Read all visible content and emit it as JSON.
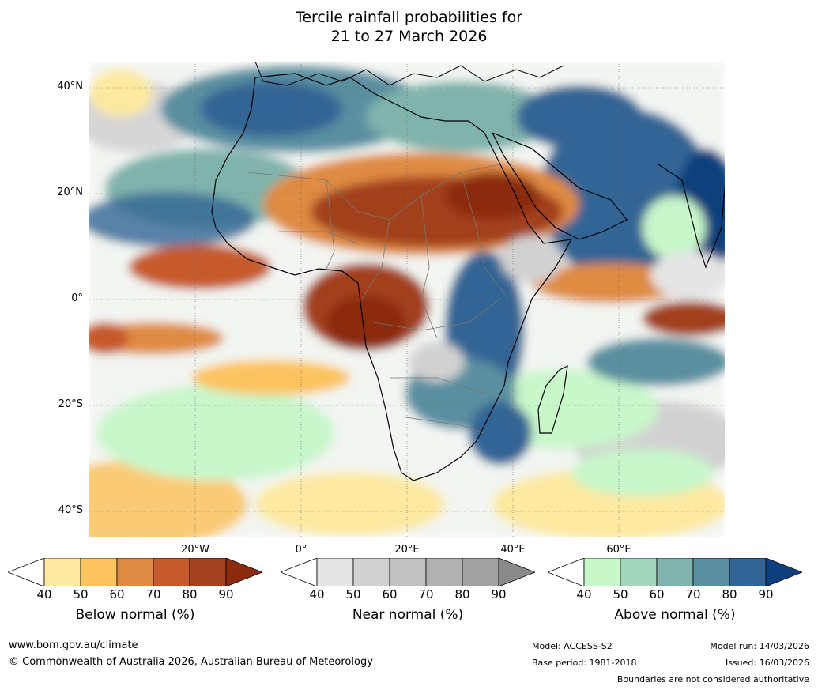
{
  "title": {
    "line1": "Tercile rainfall probabilities for",
    "line2": "21 to 27 March 2026"
  },
  "map": {
    "type": "tercile rainfall probability map",
    "region": "Africa",
    "latitude_labels": [
      "40°N",
      "20°N",
      "0°",
      "20°S",
      "40°S"
    ],
    "longitude_labels": [
      "20°W",
      "0°",
      "20°E",
      "40°E",
      "60°E"
    ]
  },
  "legends": {
    "below": {
      "title": "Below normal (%)",
      "ticks": [
        "40",
        "50",
        "60",
        "70",
        "80",
        "90"
      ],
      "colors": [
        "#ffffff",
        "#fde9a0",
        "#fcc35f",
        "#df8b43",
        "#c65a2c",
        "#a3401e",
        "#8c2a10"
      ]
    },
    "near": {
      "title": "Near normal (%)",
      "ticks": [
        "40",
        "50",
        "60",
        "70",
        "80",
        "90"
      ],
      "colors": [
        "#ffffff",
        "#e5e5e5",
        "#d1d1d1",
        "#c1c1c1",
        "#b1b1b1",
        "#a1a1a1",
        "#8a8a8a"
      ]
    },
    "above": {
      "title": "Above normal (%)",
      "ticks": [
        "40",
        "50",
        "60",
        "70",
        "80",
        "90"
      ],
      "colors": [
        "#ffffff",
        "#c8f7ca",
        "#a3d6bc",
        "#7fb3ac",
        "#5a8fa0",
        "#326595",
        "#0e3f7c"
      ]
    }
  },
  "footer": {
    "website": "www.bom.gov.au/climate",
    "copyright": "© Commonwealth of Australia 2026, Australian Bureau of Meteorology",
    "model": "Model: ACCESS-S2",
    "base_period": "Base period: 1981-2018",
    "model_run": "Model run: 14/03/2026",
    "issued": "Issued: 16/03/2026",
    "disclaimer": "Boundaries are not considered authoritative"
  }
}
